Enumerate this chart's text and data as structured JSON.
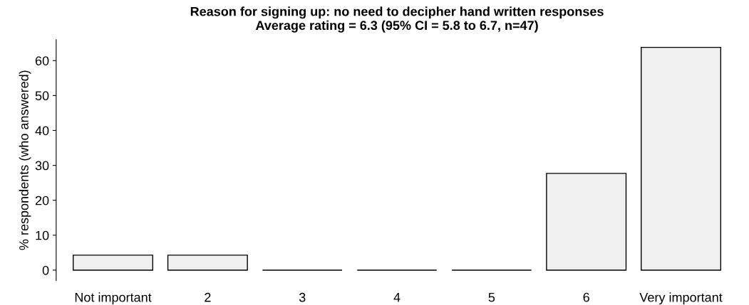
{
  "chart_data": {
    "type": "bar",
    "title": "Reason for signing up: no need to decipher hand written responses\nAverage rating = 6.3 (95% CI = 5.8 to 6.7, n=47)",
    "ylabel": "% respondents (who answered)",
    "categories": [
      "Not important",
      "2",
      "3",
      "4",
      "5",
      "6",
      "Very important"
    ],
    "values": [
      4.3,
      4.3,
      0,
      0,
      0,
      27.7,
      63.8
    ],
    "color": "#f0f0f0",
    "ylim": [
      -3,
      66
    ],
    "yticks": [
      0,
      10,
      20,
      30,
      40,
      50,
      60
    ],
    "grid": false,
    "legend": false
  }
}
